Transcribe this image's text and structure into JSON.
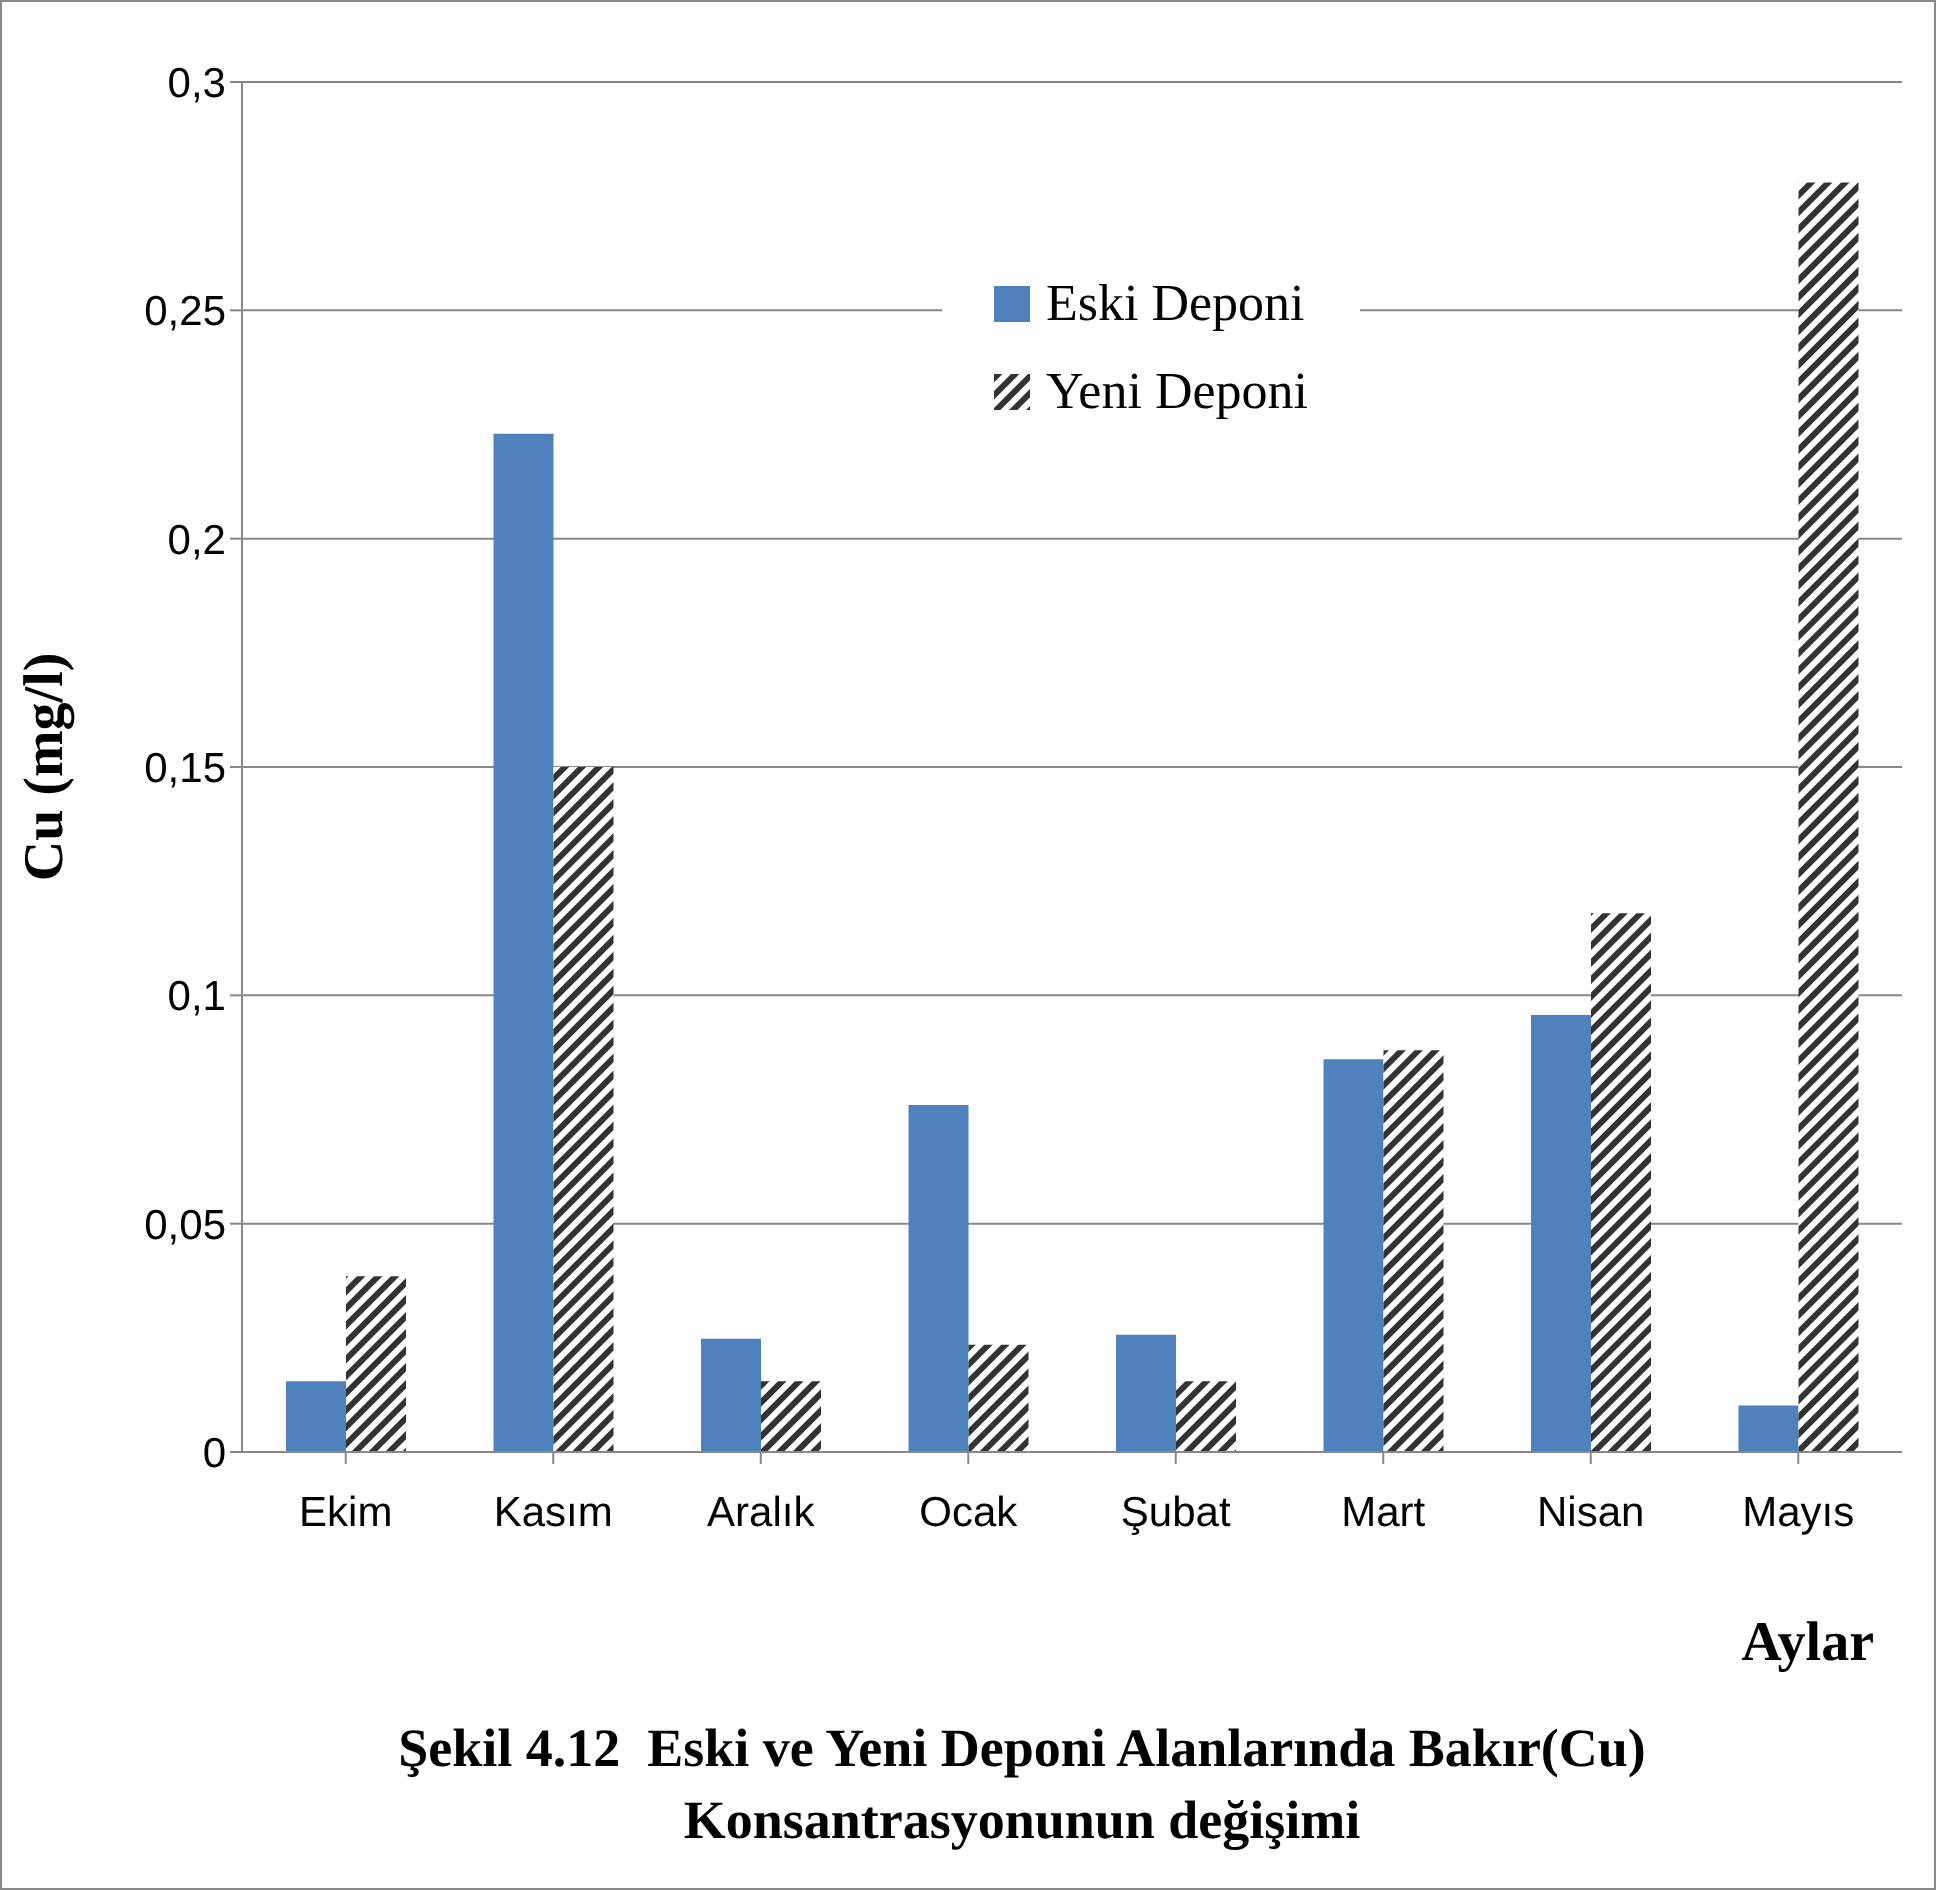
{
  "chart_data": {
    "type": "bar",
    "title": "Şekil 4.12  Eski ve Yeni Deponi Alanlarında Bakır(Cu) Konsantrasyonunun değişimi",
    "xlabel": "Aylar",
    "ylabel": "Cu (mg/l)",
    "categories": [
      "Ekim",
      "Kasım",
      "Aralık",
      "Ocak",
      "Şubat",
      "Mart",
      "Nisan",
      "Mayıs"
    ],
    "series": [
      {
        "name": "Eski Deponi",
        "color": "#4f81bd",
        "values": [
          0.0155,
          0.223,
          0.0248,
          0.076,
          0.0257,
          0.086,
          0.0957,
          0.0102
        ]
      },
      {
        "name": "Yeni Deponi",
        "color": "#333333",
        "values": [
          0.0385,
          0.15,
          0.0155,
          0.0235,
          0.0155,
          0.088,
          0.118,
          0.278
        ]
      }
    ],
    "ylim": [
      0,
      0.3
    ],
    "yticks": [
      {
        "value": 0,
        "label": "0"
      },
      {
        "value": 0.05,
        "label": "0,05"
      },
      {
        "value": 0.1,
        "label": "0,1"
      },
      {
        "value": 0.15,
        "label": "0,15"
      },
      {
        "value": 0.2,
        "label": "0,2"
      },
      {
        "value": 0.25,
        "label": "0,25"
      },
      {
        "value": 0.3,
        "label": "0,3"
      }
    ],
    "grid": "y",
    "legend": "top"
  }
}
